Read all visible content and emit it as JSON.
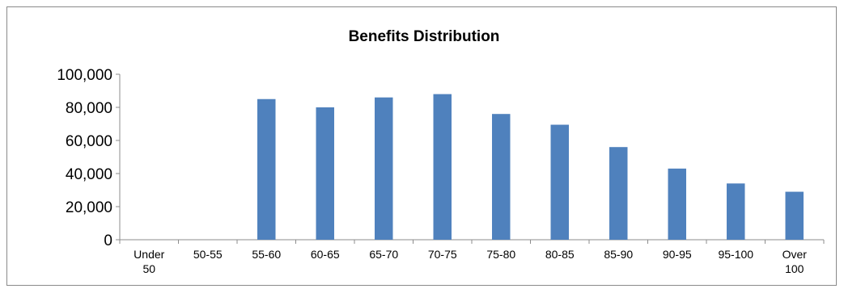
{
  "chart_data": {
    "type": "bar",
    "title": "Benefits Distribution",
    "xlabel": "",
    "ylabel": "",
    "categories": [
      "Under 50",
      "50-55",
      "55-60",
      "60-65",
      "65-70",
      "70-75",
      "75-80",
      "80-85",
      "85-90",
      "90-95",
      "95-100",
      "Over 100"
    ],
    "values": [
      0,
      0,
      85000,
      80000,
      86000,
      88000,
      76000,
      69500,
      56000,
      43000,
      34000,
      29000
    ],
    "ylim": [
      0,
      100000
    ],
    "yticks": [
      0,
      20000,
      40000,
      60000,
      80000,
      100000
    ],
    "ytick_labels": [
      "0",
      "20,000",
      "40,000",
      "60,000",
      "80,000",
      "100,000"
    ],
    "grid": false,
    "legend": "none",
    "bar_color": "#4f81bd"
  }
}
